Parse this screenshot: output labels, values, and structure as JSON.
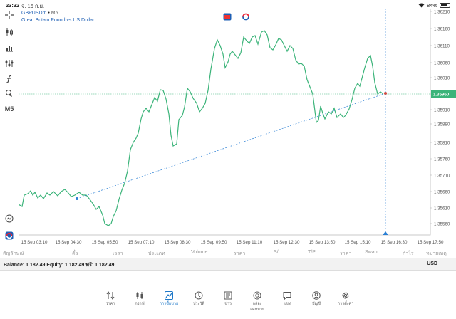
{
  "status_bar": {
    "time": "23:32",
    "date": "จ. 15 ก.ย.",
    "battery": "84%",
    "battery_level": 0.84
  },
  "toolbar": {
    "timeframe": "M5",
    "icons": [
      "crosshair-icon",
      "candles-icon",
      "bar-chart-icon",
      "indicators-icon",
      "function-icon",
      "objects-icon",
      "timeframe",
      "alerts-icon",
      "app-logo-icon"
    ]
  },
  "chart": {
    "symbol": "GBPUSDm",
    "separator": " • ",
    "timeframe_label": "M5",
    "description": "Great Britain Pound vs US Dollar",
    "line_color": "#3cb47a",
    "current_price_label": "1.35960",
    "current_price": 1.3596,
    "price_ticks": [
      "1.36210",
      "1.36160",
      "1.36110",
      "1.36060",
      "1.36010",
      "1.35960",
      "1.35910",
      "1.35880",
      "1.35810",
      "1.35760",
      "1.35710",
      "1.35660",
      "1.35610",
      "1.35560"
    ],
    "time_ticks": [
      "15 Sep 03:10",
      "15 Sep 04:30",
      "15 Sep 05:50",
      "15 Sep 07:10",
      "15 Sep 08:30",
      "15 Sep 09:50",
      "15 Sep 11:10",
      "15 Sep 12:30",
      "15 Sep 13:50",
      "15 Sep 15:10",
      "15 Sep 16:30",
      "15 Sep 17:50"
    ]
  },
  "trade_columns": [
    "สัญลักษณ์",
    "ตั๋ว",
    "เวลา",
    "ประเภท",
    "Volume",
    "ราคา",
    "S/L",
    "T/P",
    "ราคา",
    "Swap",
    "กำไร",
    "หมายเหตุ"
  ],
  "account": {
    "summary": "Balance: 1 182.49 Equity: 1 182.49 ฟรี: 1 182.49",
    "currency": "USD"
  },
  "nav": [
    {
      "label": "ราคา",
      "icon": "quotes-icon"
    },
    {
      "label": "กราฟ",
      "icon": "chart-icon"
    },
    {
      "label": "การซื้อขาย",
      "icon": "trade-icon",
      "active": true
    },
    {
      "label": "ประวัติ",
      "icon": "history-icon"
    },
    {
      "label": "ข่าว",
      "icon": "news-icon"
    },
    {
      "label": "กล่องจดหมาย",
      "icon": "mailbox-icon"
    },
    {
      "label": "แชท",
      "icon": "chat-icon"
    },
    {
      "label": "บัญชี",
      "icon": "account-icon"
    },
    {
      "label": "การตั้งค่า",
      "icon": "settings-icon"
    }
  ]
}
